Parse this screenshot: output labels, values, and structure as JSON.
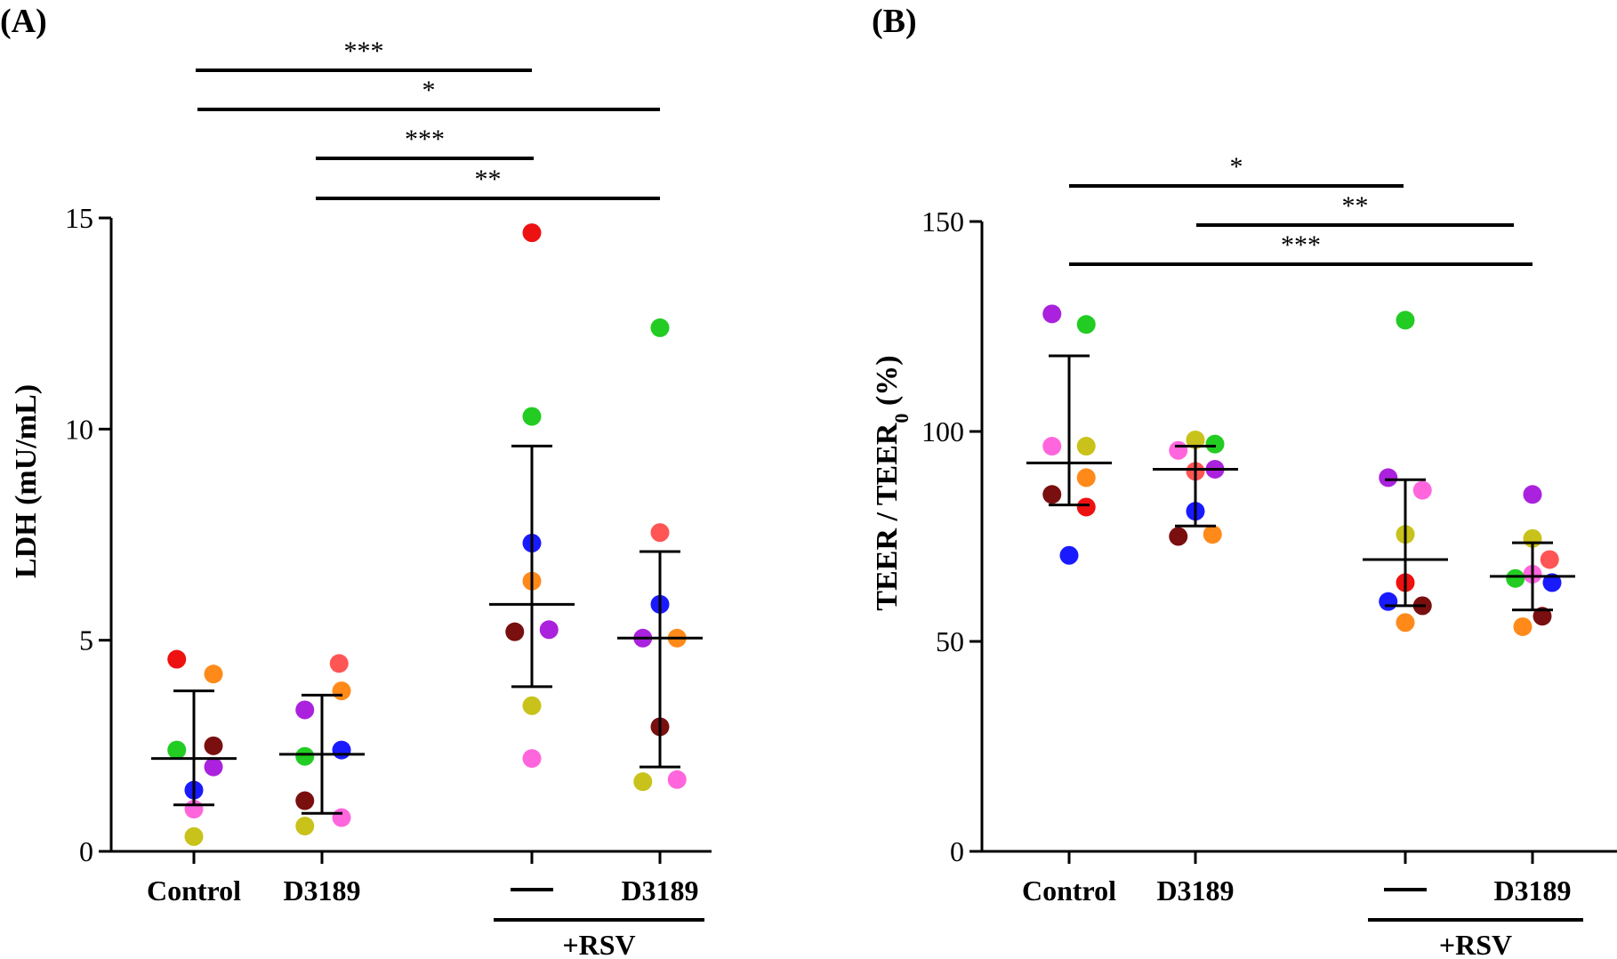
{
  "chart_data": [
    {
      "type": "scatter",
      "panel_label": "(A)",
      "ylabel": "LDH (mU/mL)",
      "ylim": [
        0,
        15
      ],
      "yticks": [
        0,
        5,
        10,
        15
      ],
      "categories": [
        "Control",
        "D3189",
        "—",
        "D3189"
      ],
      "group_label": "+RSV",
      "group_span": [
        2,
        3
      ],
      "summary": [
        {
          "mean": 2.2,
          "sd_low": 1.1,
          "sd_high": 3.8
        },
        {
          "mean": 2.3,
          "sd_low": 0.9,
          "sd_high": 3.7
        },
        {
          "mean": 5.85,
          "sd_low": 3.9,
          "sd_high": 9.6
        },
        {
          "mean": 5.05,
          "sd_low": 2.0,
          "sd_high": 7.1
        }
      ],
      "points": [
        [
          {
            "dx": -0.35,
            "y": 4.55,
            "color": "#ee1111"
          },
          {
            "dx": 0.4,
            "y": 4.2,
            "color": "#ff8a1a"
          },
          {
            "dx": -0.35,
            "y": 2.4,
            "color": "#22cc22"
          },
          {
            "dx": 0.4,
            "y": 2.5,
            "color": "#7a0f0f"
          },
          {
            "dx": 0.4,
            "y": 2.0,
            "color": "#aa22dd"
          },
          {
            "dx": 0.0,
            "y": 1.45,
            "color": "#1a1aff"
          },
          {
            "dx": 0.0,
            "y": 1.0,
            "color": "#ff66dd"
          },
          {
            "dx": 0.0,
            "y": 0.35,
            "color": "#c8c21a"
          }
        ],
        [
          {
            "dx": 0.35,
            "y": 4.45,
            "color": "#ff5555"
          },
          {
            "dx": 0.4,
            "y": 3.8,
            "color": "#ff8a1a"
          },
          {
            "dx": -0.35,
            "y": 3.35,
            "color": "#aa22dd"
          },
          {
            "dx": 0.4,
            "y": 2.4,
            "color": "#1a1aff"
          },
          {
            "dx": -0.35,
            "y": 2.25,
            "color": "#22cc22"
          },
          {
            "dx": -0.35,
            "y": 1.2,
            "color": "#7a0f0f"
          },
          {
            "dx": 0.4,
            "y": 0.8,
            "color": "#ff66dd"
          },
          {
            "dx": -0.35,
            "y": 0.6,
            "color": "#c8c21a"
          }
        ],
        [
          {
            "dx": 0.0,
            "y": 14.65,
            "color": "#ee1111"
          },
          {
            "dx": 0.0,
            "y": 10.3,
            "color": "#22cc22"
          },
          {
            "dx": 0.0,
            "y": 7.3,
            "color": "#1a1aff"
          },
          {
            "dx": 0.0,
            "y": 6.4,
            "color": "#ff8a1a"
          },
          {
            "dx": -0.35,
            "y": 5.2,
            "color": "#7a0f0f"
          },
          {
            "dx": 0.35,
            "y": 5.25,
            "color": "#aa22dd"
          },
          {
            "dx": 0.0,
            "y": 3.45,
            "color": "#c8c21a"
          },
          {
            "dx": 0.0,
            "y": 2.2,
            "color": "#ff66dd"
          }
        ],
        [
          {
            "dx": 0.0,
            "y": 12.4,
            "color": "#22cc22"
          },
          {
            "dx": 0.0,
            "y": 7.55,
            "color": "#ff5555"
          },
          {
            "dx": 0.0,
            "y": 5.85,
            "color": "#1a1aff"
          },
          {
            "dx": -0.35,
            "y": 5.05,
            "color": "#aa22dd"
          },
          {
            "dx": 0.35,
            "y": 5.05,
            "color": "#ff8a1a"
          },
          {
            "dx": 0.0,
            "y": 2.95,
            "color": "#7a0f0f"
          },
          {
            "dx": -0.35,
            "y": 1.65,
            "color": "#c8c21a"
          },
          {
            "dx": 0.35,
            "y": 1.7,
            "color": "#ff66dd"
          }
        ]
      ],
      "significance": [
        {
          "from": 0,
          "to": 2,
          "label": "***"
        },
        {
          "from": 0,
          "to": 3,
          "label": "*"
        },
        {
          "from": 1,
          "to": 2,
          "label": "***"
        },
        {
          "from": 1,
          "to": 3,
          "label": "**"
        }
      ]
    },
    {
      "type": "scatter",
      "panel_label": "(B)",
      "ylabel": "TEER / TEER",
      "ylabel_sub": "0",
      "ylabel_tail": " (%)",
      "ylim": [
        0,
        150
      ],
      "yticks": [
        0,
        50,
        100,
        150
      ],
      "categories": [
        "Control",
        "D3189",
        "—",
        "D3189"
      ],
      "group_label": "+RSV",
      "group_span": [
        2,
        3
      ],
      "summary": [
        {
          "mean": 92.5,
          "sd_low": 82.5,
          "sd_high": 118
        },
        {
          "mean": 91,
          "sd_low": 77.5,
          "sd_high": 96.5
        },
        {
          "mean": 69.5,
          "sd_low": 58.5,
          "sd_high": 88.5
        },
        {
          "mean": 65.5,
          "sd_low": 57.5,
          "sd_high": 73.5
        }
      ],
      "points": [
        [
          {
            "dx": -0.35,
            "y": 128,
            "color": "#aa22dd"
          },
          {
            "dx": 0.35,
            "y": 125.5,
            "color": "#22cc22"
          },
          {
            "dx": -0.35,
            "y": 96.5,
            "color": "#ff66dd"
          },
          {
            "dx": 0.35,
            "y": 96.5,
            "color": "#c8c21a"
          },
          {
            "dx": 0.35,
            "y": 89,
            "color": "#ff8a1a"
          },
          {
            "dx": -0.35,
            "y": 85,
            "color": "#7a0f0f"
          },
          {
            "dx": 0.35,
            "y": 82,
            "color": "#ee1111"
          },
          {
            "dx": 0.0,
            "y": 70.5,
            "color": "#1a1aff"
          }
        ],
        [
          {
            "dx": 0.0,
            "y": 98,
            "color": "#c8c21a"
          },
          {
            "dx": 0.4,
            "y": 97,
            "color": "#22cc22"
          },
          {
            "dx": -0.35,
            "y": 95.5,
            "color": "#ff66dd"
          },
          {
            "dx": 0.4,
            "y": 91,
            "color": "#aa22dd"
          },
          {
            "dx": 0.0,
            "y": 90.5,
            "color": "#ff5555"
          },
          {
            "dx": 0.0,
            "y": 81,
            "color": "#1a1aff"
          },
          {
            "dx": -0.35,
            "y": 75,
            "color": "#7a0f0f"
          },
          {
            "dx": 0.35,
            "y": 75.5,
            "color": "#ff8a1a"
          }
        ],
        [
          {
            "dx": 0.0,
            "y": 126.5,
            "color": "#22cc22"
          },
          {
            "dx": -0.35,
            "y": 89,
            "color": "#aa22dd"
          },
          {
            "dx": 0.35,
            "y": 86,
            "color": "#ff66dd"
          },
          {
            "dx": 0.0,
            "y": 75.5,
            "color": "#c8c21a"
          },
          {
            "dx": 0.0,
            "y": 64,
            "color": "#ee1111"
          },
          {
            "dx": -0.35,
            "y": 59.5,
            "color": "#1a1aff"
          },
          {
            "dx": 0.35,
            "y": 58.5,
            "color": "#7a0f0f"
          },
          {
            "dx": 0.0,
            "y": 54.5,
            "color": "#ff8a1a"
          }
        ],
        [
          {
            "dx": 0.0,
            "y": 85,
            "color": "#aa22dd"
          },
          {
            "dx": 0.0,
            "y": 74.5,
            "color": "#c8c21a"
          },
          {
            "dx": 0.35,
            "y": 69.5,
            "color": "#ff5555"
          },
          {
            "dx": 0.0,
            "y": 66,
            "color": "#ff66dd"
          },
          {
            "dx": -0.35,
            "y": 65,
            "color": "#22cc22"
          },
          {
            "dx": 0.4,
            "y": 64,
            "color": "#1a1aff"
          },
          {
            "dx": 0.2,
            "y": 56,
            "color": "#7a0f0f"
          },
          {
            "dx": -0.2,
            "y": 53.5,
            "color": "#ff8a1a"
          }
        ]
      ],
      "significance": [
        {
          "from": 0,
          "to": 2,
          "label": "*"
        },
        {
          "from": 1,
          "to": 3,
          "label": "**"
        },
        {
          "from": 0,
          "to": 3,
          "label": "***"
        }
      ]
    }
  ]
}
